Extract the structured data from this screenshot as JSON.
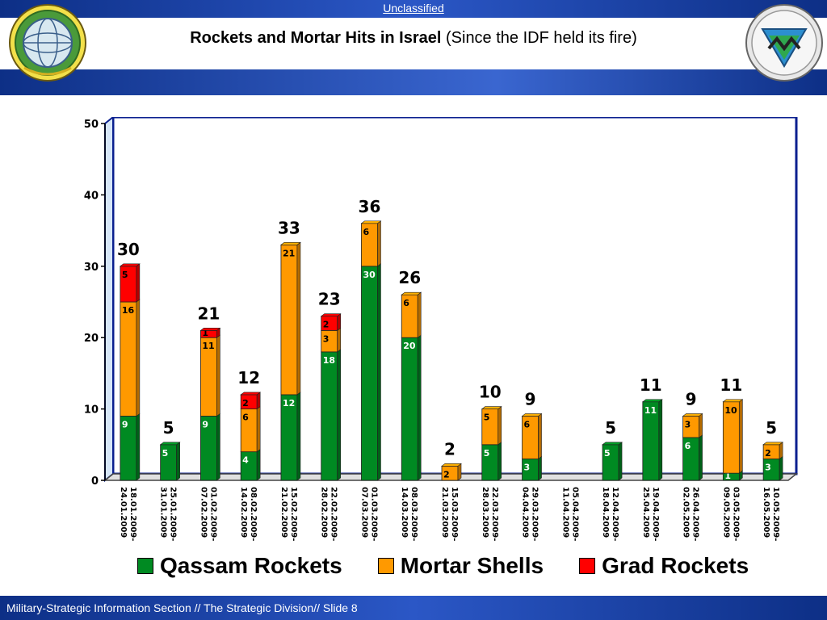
{
  "header": {
    "classification": "Unclassified",
    "title_bold": "Rockets and Mortar Hits in Israel",
    "title_rest": " (Since the IDF held its fire)"
  },
  "footer": {
    "text": "Military-Strategic Information Section // The Strategic Division// Slide 8"
  },
  "colors": {
    "qassam": "#008a22",
    "mortar": "#ff9900",
    "grad": "#ff0000",
    "plot_bg": "#ffffff",
    "wall": "#d6e6f8",
    "frame": "#0a1f8f"
  },
  "legend": {
    "qassam": "Qassam Rockets",
    "mortar": "Mortar Shells",
    "grad": "Grad Rockets"
  },
  "chart_data": {
    "type": "bar",
    "stacked": true,
    "ylim": [
      0,
      50
    ],
    "yticks": [
      0,
      10,
      20,
      30,
      40,
      50
    ],
    "categories": [
      "18.01.2009-24.01.2009",
      "25.01.2009-31.01.2009",
      "01.02.2009-07.02.2009",
      "08.02.2009-14.02.2009",
      "15.02.2009-21.02.2009",
      "22.02.2009-28.02.2009",
      "01.03.2009-07.03.2009",
      "08.03.2009-14.03.2009",
      "15.03.2009-21.03.2009",
      "22.03.2009-28.03.2009",
      "29.03.2009-04.04.2009",
      "05.04.2009-11.04.2009",
      "12.04.2009-18.04.2009",
      "19.04.2009-25.04.2009",
      "26.04.2009-02.05.2009",
      "03.05.2009-09.05.2009",
      "10.05.2009-16.05.2009"
    ],
    "series": [
      {
        "name": "Qassam Rockets",
        "key": "qassam",
        "values": [
          9,
          5,
          9,
          4,
          12,
          18,
          30,
          20,
          0,
          5,
          3,
          0,
          5,
          11,
          6,
          1,
          3
        ]
      },
      {
        "name": "Mortar Shells",
        "key": "mortar",
        "values": [
          16,
          0,
          11,
          6,
          21,
          3,
          6,
          6,
          2,
          5,
          6,
          0,
          0,
          0,
          3,
          10,
          2
        ]
      },
      {
        "name": "Grad Rockets",
        "key": "grad",
        "values": [
          5,
          0,
          1,
          2,
          0,
          2,
          0,
          0,
          0,
          0,
          0,
          0,
          0,
          0,
          0,
          0,
          0
        ]
      }
    ],
    "totals": [
      30,
      5,
      21,
      12,
      33,
      23,
      36,
      26,
      2,
      10,
      9,
      null,
      5,
      11,
      9,
      11,
      5
    ],
    "legend_position": "bottom",
    "grid": false
  }
}
